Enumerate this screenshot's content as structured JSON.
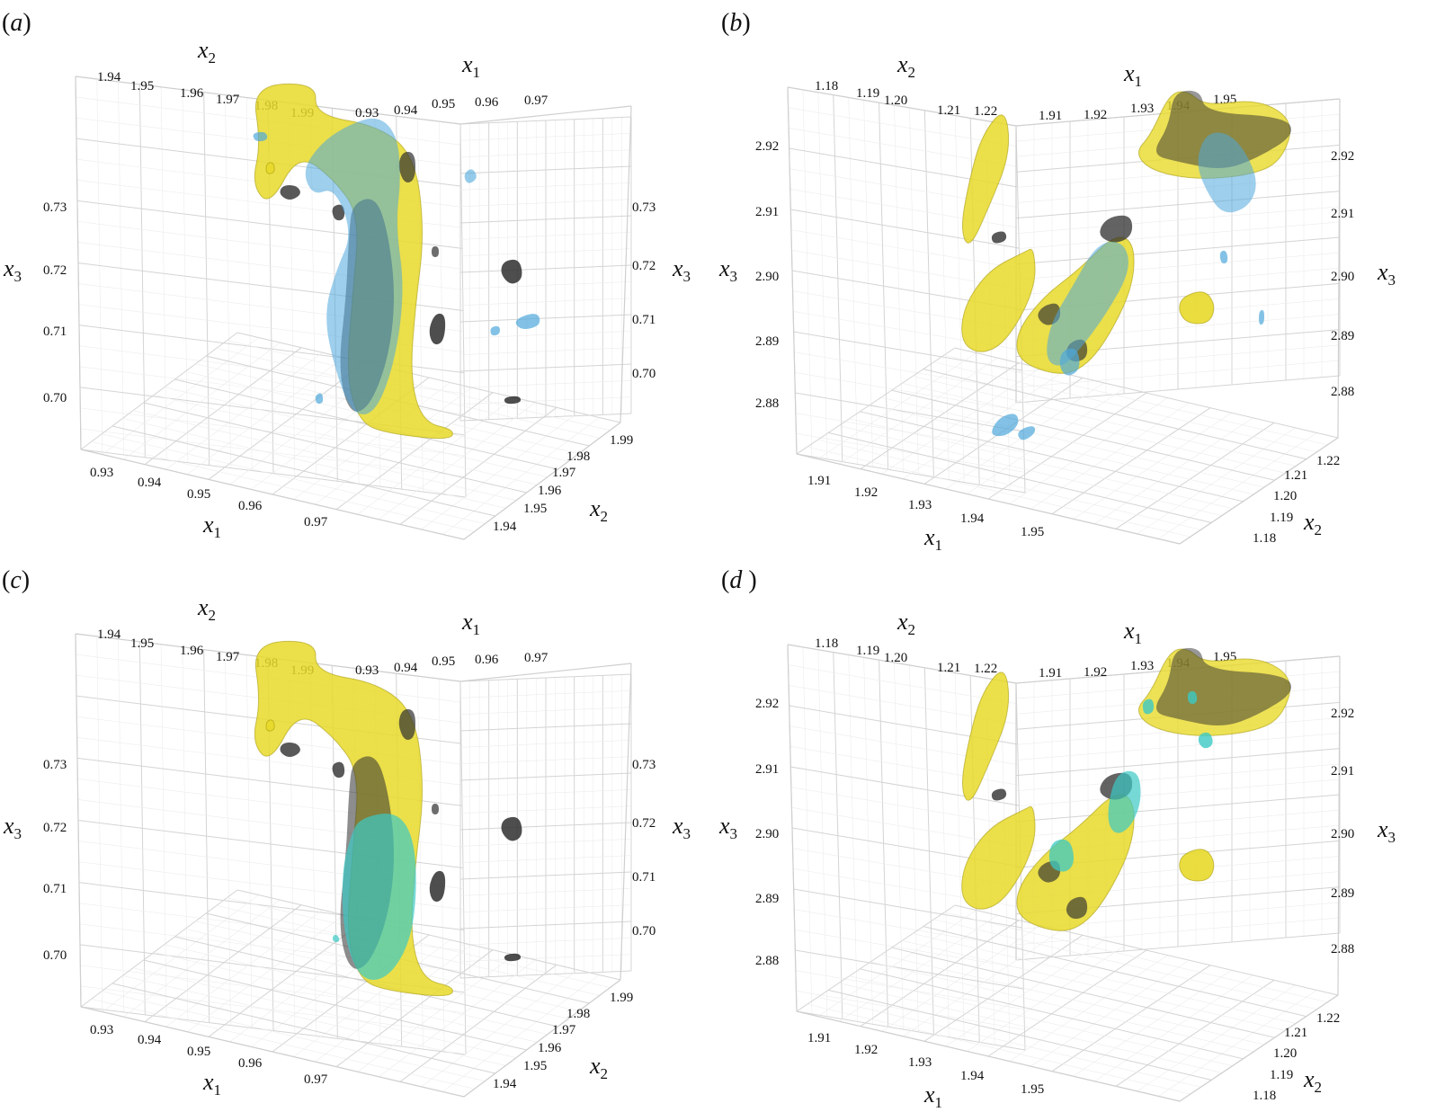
{
  "colors": {
    "yellow": "#e8d92a",
    "yellow_edge": "#a99c10",
    "blue": "#4fa8dc",
    "cyan": "#3cc9c4",
    "dark": "#2f2f2f"
  },
  "chart_data": [
    {
      "panel": "a",
      "label_prefix": "(",
      "label_letter": "a",
      "label_suffix": ")",
      "type": "3d-isosurface",
      "x1_ticks": [
        "0.93",
        "0.94",
        "0.95",
        "0.96",
        "0.97"
      ],
      "x2_ticks": [
        "1.94",
        "1.95",
        "1.96",
        "1.97",
        "1.98",
        "1.99"
      ],
      "x3_ticks": [
        "0.70",
        "0.71",
        "0.72",
        "0.73"
      ],
      "x1_range": [
        0.925,
        0.975
      ],
      "x2_range": [
        1.935,
        1.995
      ],
      "x3_range": [
        0.695,
        0.735
      ],
      "surfaces": [
        "yellow",
        "blue",
        "dark"
      ]
    },
    {
      "panel": "b",
      "label_prefix": "(",
      "label_letter": "b",
      "label_suffix": ")",
      "type": "3d-isosurface",
      "x1_ticks": [
        "1.91",
        "1.92",
        "1.93",
        "1.94",
        "1.95"
      ],
      "x2_ticks": [
        "1.18",
        "1.19",
        "1.20",
        "1.21",
        "1.22"
      ],
      "x3_ticks": [
        "2.88",
        "2.89",
        "2.90",
        "2.91",
        "2.92"
      ],
      "x1_range": [
        1.905,
        1.955
      ],
      "x2_range": [
        1.175,
        1.225
      ],
      "x3_range": [
        2.875,
        2.925
      ],
      "surfaces": [
        "yellow",
        "blue",
        "dark"
      ]
    },
    {
      "panel": "c",
      "label_prefix": "(",
      "label_letter": "c",
      "label_suffix": ")",
      "type": "3d-isosurface",
      "x1_ticks": [
        "0.93",
        "0.94",
        "0.95",
        "0.96",
        "0.97"
      ],
      "x2_ticks": [
        "1.94",
        "1.95",
        "1.96",
        "1.97",
        "1.98",
        "1.99"
      ],
      "x3_ticks": [
        "0.70",
        "0.71",
        "0.72",
        "0.73"
      ],
      "x1_range": [
        0.925,
        0.975
      ],
      "x2_range": [
        1.935,
        1.995
      ],
      "x3_range": [
        0.695,
        0.735
      ],
      "surfaces": [
        "yellow",
        "cyan",
        "dark"
      ]
    },
    {
      "panel": "d",
      "label_prefix": "(",
      "label_letter": "d",
      "label_suffix": " )",
      "type": "3d-isosurface",
      "x1_ticks": [
        "1.91",
        "1.92",
        "1.93",
        "1.94",
        "1.95"
      ],
      "x2_ticks": [
        "1.18",
        "1.19",
        "1.20",
        "1.21",
        "1.22"
      ],
      "x3_ticks": [
        "2.88",
        "2.89",
        "2.90",
        "2.91",
        "2.92"
      ],
      "x1_range": [
        1.905,
        1.955
      ],
      "x2_range": [
        1.175,
        1.225
      ],
      "x3_range": [
        2.875,
        2.925
      ],
      "surfaces": [
        "yellow",
        "cyan",
        "dark"
      ]
    }
  ],
  "axis_names": {
    "x1_base": "x",
    "x1_sub": "1",
    "x2_base": "x",
    "x2_sub": "2",
    "x3_base": "x",
    "x3_sub": "3"
  }
}
